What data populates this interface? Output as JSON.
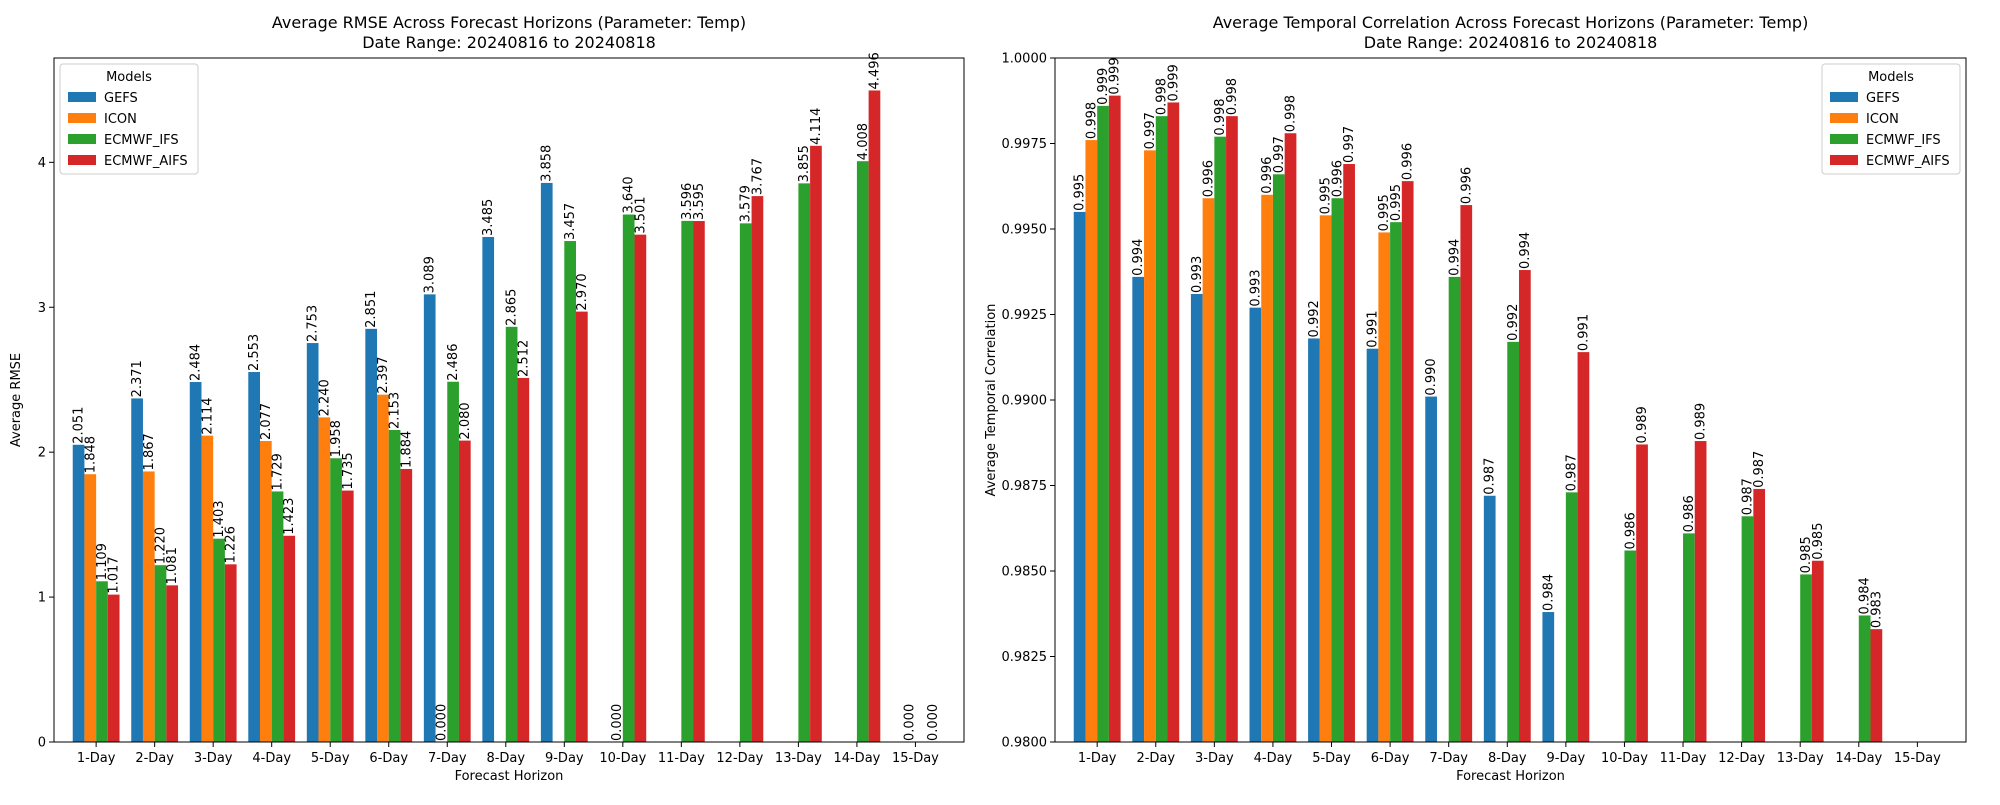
{
  "chart_data": [
    {
      "type": "bar",
      "title": "Average RMSE Across Forecast Horizons (Parameter: Temp)",
      "subtitle": "Date Range: 20240816 to 20240818",
      "xlabel": "Forecast Horizon",
      "ylabel": "Average RMSE",
      "ylim": [
        0,
        4.72
      ],
      "yticks": [
        "0",
        "1",
        "2",
        "3",
        "4"
      ],
      "categories": [
        "1-Day",
        "2-Day",
        "3-Day",
        "4-Day",
        "5-Day",
        "6-Day",
        "7-Day",
        "8-Day",
        "9-Day",
        "10-Day",
        "11-Day",
        "12-Day",
        "13-Day",
        "14-Day",
        "15-Day"
      ],
      "legend": {
        "title": "Models",
        "placement": "top-left"
      },
      "series": [
        {
          "name": "GEFS",
          "color": "#1f77b4",
          "values": [
            2.051,
            2.371,
            2.484,
            2.553,
            2.753,
            2.851,
            3.089,
            3.485,
            3.858,
            null,
            null,
            null,
            null,
            null,
            null
          ],
          "labels": [
            "2.051",
            "2.371",
            "2.484",
            "2.553",
            "2.753",
            "2.851",
            "3.089",
            "3.485",
            "3.858",
            "",
            "",
            "",
            "",
            "",
            ""
          ]
        },
        {
          "name": "ICON",
          "color": "#ff7f0e",
          "values": [
            1.848,
            1.867,
            2.114,
            2.077,
            2.24,
            2.397,
            0.0,
            null,
            null,
            0.0,
            null,
            null,
            null,
            null,
            0.0
          ],
          "labels": [
            "1.848",
            "1.867",
            "2.114",
            "2.077",
            "2.240",
            "2.397",
            "0.000",
            "",
            "",
            "0.000",
            "",
            "",
            "",
            "",
            "0.000"
          ]
        },
        {
          "name": "ECMWF_IFS",
          "color": "#2ca02c",
          "values": [
            1.109,
            1.22,
            1.403,
            1.729,
            1.958,
            2.153,
            2.486,
            2.865,
            3.457,
            3.64,
            3.596,
            3.579,
            3.855,
            4.008,
            null
          ],
          "labels": [
            "1.109",
            "1.220",
            "1.403",
            "1.729",
            "1.958",
            "2.153",
            "2.486",
            "2.865",
            "3.457",
            "3.640",
            "3.596",
            "3.579",
            "3.855",
            "4.008",
            ""
          ]
        },
        {
          "name": "ECMWF_AIFS",
          "color": "#d62728",
          "values": [
            1.017,
            1.081,
            1.226,
            1.423,
            1.735,
            1.884,
            2.08,
            2.512,
            2.97,
            3.501,
            3.595,
            3.767,
            4.114,
            4.496,
            0.0
          ],
          "labels": [
            "1.017",
            "1.081",
            "1.226",
            "1.423",
            "1.735",
            "1.884",
            "2.080",
            "2.512",
            "2.970",
            "3.501",
            "3.595",
            "3.767",
            "4.114",
            "4.496",
            "0.000"
          ]
        }
      ]
    },
    {
      "type": "bar",
      "title": "Average Temporal Correlation Across Forecast Horizons (Parameter: Temp)",
      "subtitle": "Date Range: 20240816 to 20240818",
      "xlabel": "Forecast Horizon",
      "ylabel": "Average Temporal Correlation",
      "ylim": [
        0.98,
        1.0
      ],
      "yticks": [
        "0.9800",
        "0.9825",
        "0.9850",
        "0.9875",
        "0.9900",
        "0.9925",
        "0.9950",
        "0.9975",
        "1.0000"
      ],
      "categories": [
        "1-Day",
        "2-Day",
        "3-Day",
        "4-Day",
        "5-Day",
        "6-Day",
        "7-Day",
        "8-Day",
        "9-Day",
        "10-Day",
        "11-Day",
        "12-Day",
        "13-Day",
        "14-Day",
        "15-Day"
      ],
      "legend": {
        "title": "Models",
        "placement": "top-right"
      },
      "series": [
        {
          "name": "GEFS",
          "color": "#1f77b4",
          "values": [
            0.9955,
            0.9936,
            0.9931,
            0.9927,
            0.9918,
            0.9915,
            0.9901,
            0.9872,
            0.9838,
            null,
            null,
            null,
            null,
            null,
            null
          ],
          "labels": [
            "0.995",
            "0.994",
            "0.993",
            "0.993",
            "0.992",
            "0.991",
            "0.990",
            "0.987",
            "0.984",
            "",
            "",
            "",
            "",
            "",
            ""
          ]
        },
        {
          "name": "ICON",
          "color": "#ff7f0e",
          "values": [
            0.9976,
            0.9973,
            0.9959,
            0.996,
            0.9954,
            0.9949,
            null,
            null,
            null,
            null,
            null,
            null,
            null,
            null,
            null
          ],
          "labels": [
            "0.998",
            "0.997",
            "0.996",
            "0.996",
            "0.995",
            "0.995",
            "",
            "",
            "",
            "",
            "",
            "",
            "",
            "",
            ""
          ]
        },
        {
          "name": "ECMWF_IFS",
          "color": "#2ca02c",
          "values": [
            0.9986,
            0.9983,
            0.9977,
            0.9966,
            0.9959,
            0.9952,
            0.9936,
            0.9917,
            0.9873,
            0.9856,
            0.9861,
            0.9866,
            0.9849,
            0.9837,
            null
          ],
          "labels": [
            "0.999",
            "0.998",
            "0.998",
            "0.997",
            "0.996",
            "0.995",
            "0.994",
            "0.992",
            "0.987",
            "0.986",
            "0.986",
            "0.987",
            "0.985",
            "0.984",
            ""
          ]
        },
        {
          "name": "ECMWF_AIFS",
          "color": "#d62728",
          "values": [
            0.9989,
            0.9987,
            0.9983,
            0.9978,
            0.9969,
            0.9964,
            0.9957,
            0.9938,
            0.9914,
            0.9887,
            0.9888,
            0.9874,
            0.9853,
            0.9833,
            null
          ],
          "labels": [
            "0.999",
            "0.999",
            "0.998",
            "0.998",
            "0.997",
            "0.996",
            "0.996",
            "0.994",
            "0.991",
            "0.989",
            "0.989",
            "0.987",
            "0.985",
            "0.983",
            ""
          ]
        }
      ]
    }
  ]
}
